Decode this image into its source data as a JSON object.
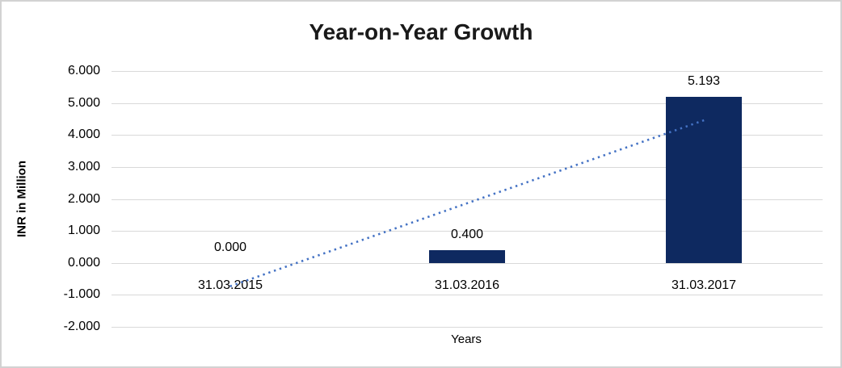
{
  "window": {
    "background_color": "#ffffff",
    "border_color": "#d2d2d2"
  },
  "chart_data": {
    "type": "bar",
    "title": "Year-on-Year Growth",
    "xlabel": "Years",
    "ylabel": "INR in Million",
    "categories": [
      "31.03.2015",
      "31.03.2016",
      "31.03.2017"
    ],
    "values": [
      0.0,
      0.4,
      5.193
    ],
    "data_labels": [
      "0.000",
      "0.400",
      "5.193"
    ],
    "y_ticks": [
      "6.000",
      "5.000",
      "4.000",
      "3.000",
      "2.000",
      "1.000",
      "0.000",
      "-1.000",
      "-2.000"
    ],
    "y_tick_values": [
      6,
      5,
      4,
      3,
      2,
      1,
      0,
      -1,
      -2
    ],
    "ylim": [
      -2,
      6
    ],
    "grid": "horizontal",
    "gridline_color": "#d9d9d9",
    "legend": "none",
    "bar_color": "#0e2960",
    "label_color": "#000000",
    "title_color": "#1a1a1a",
    "trendline": {
      "type": "linear",
      "style": "dotted",
      "color": "#4472c4"
    }
  }
}
